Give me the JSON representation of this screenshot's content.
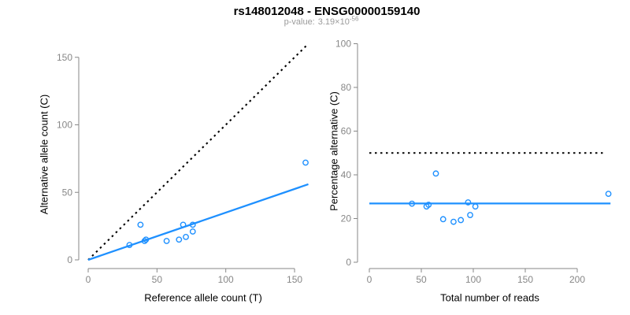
{
  "title": "rs148012048 - ENSG00000159140",
  "subtitle": {
    "label": "p-value:",
    "value_mantissa": "3.19×10",
    "value_exponent": "-56"
  },
  "colors": {
    "accent_blue": "#1E90FF",
    "line_black": "#000000",
    "axis_gray": "#878787",
    "tick_label_gray": "#878787",
    "title_black": "#000000",
    "subtitle_gray": "#9b9b9b"
  },
  "chart_data": [
    {
      "type": "scatter",
      "panel": "left",
      "xlabel": "Reference allele count (T)",
      "ylabel": "Alternative allele count (C)",
      "xlim": [
        0,
        160
      ],
      "ylim": [
        0,
        160
      ],
      "xticks": [
        0,
        50,
        100,
        150
      ],
      "yticks": [
        0,
        50,
        100,
        150
      ],
      "grid": false,
      "legend": "none",
      "point_style": "open-circle",
      "points": [
        [
          30,
          11
        ],
        [
          38,
          26
        ],
        [
          41,
          14
        ],
        [
          42,
          15
        ],
        [
          57,
          14
        ],
        [
          66,
          15
        ],
        [
          69,
          26
        ],
        [
          71,
          17
        ],
        [
          76,
          21
        ],
        [
          76,
          26
        ],
        [
          158,
          72
        ]
      ],
      "lines": [
        {
          "name": "identity",
          "desc": "y = x (1:1 expectation)",
          "style": "dotted",
          "color": "#000000",
          "x1": 0,
          "y1": 0,
          "x2": 160,
          "y2": 160
        },
        {
          "name": "fit",
          "desc": "fitted allelic ratio, slope 0.35",
          "style": "solid",
          "color": "#1E90FF",
          "x1": 0,
          "y1": 0,
          "x2": 160,
          "y2": 56
        }
      ]
    },
    {
      "type": "scatter",
      "panel": "right",
      "xlabel": "Total number of reads",
      "ylabel": "Percentage alternative (C)",
      "xlim": [
        0,
        235
      ],
      "ylim": [
        0,
        100
      ],
      "xticks": [
        0,
        50,
        100,
        150,
        200
      ],
      "yticks": [
        0,
        20,
        40,
        60,
        80,
        100
      ],
      "grid": false,
      "legend": "none",
      "point_style": "open-circle",
      "points": [
        [
          41,
          26.8
        ],
        [
          55,
          25.5
        ],
        [
          57,
          26.3
        ],
        [
          64,
          40.6
        ],
        [
          71,
          19.7
        ],
        [
          81,
          18.5
        ],
        [
          88,
          19.3
        ],
        [
          95,
          27.4
        ],
        [
          97,
          21.6
        ],
        [
          102,
          25.5
        ],
        [
          230,
          31.3
        ]
      ],
      "lines": [
        {
          "name": "null-expectation",
          "desc": "50% expectation",
          "style": "dotted",
          "color": "#000000",
          "x1": 0,
          "y1": 50,
          "x2": 227,
          "y2": 50
        },
        {
          "name": "fit",
          "desc": "fitted mean percentage 26.9%",
          "style": "solid",
          "color": "#1E90FF",
          "x1": 0,
          "y1": 26.9,
          "x2": 232,
          "y2": 26.9
        }
      ]
    }
  ]
}
